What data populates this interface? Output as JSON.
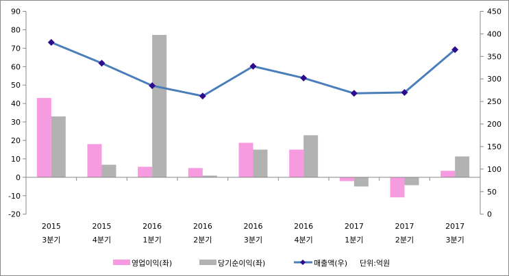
{
  "chart_data": {
    "type": "bar",
    "title": "",
    "categories": [
      [
        "2015",
        "3분기"
      ],
      [
        "2015",
        "4분기"
      ],
      [
        "2016",
        "1분기"
      ],
      [
        "2016",
        "2분기"
      ],
      [
        "2016",
        "3분기"
      ],
      [
        "2016",
        "4분기"
      ],
      [
        "2017",
        "1분기"
      ],
      [
        "2017",
        "2분기"
      ],
      [
        "2017",
        "3분기"
      ]
    ],
    "series": [
      {
        "name": "영업이익(좌)",
        "type": "bar",
        "axis": "left",
        "color": "#f79be0",
        "values": [
          43,
          18,
          5.7,
          5,
          18.7,
          15,
          -2.1,
          -10.9,
          3.5
        ]
      },
      {
        "name": "당기순이익(좌)",
        "type": "bar",
        "axis": "left",
        "color": "#b2b2b2",
        "values": [
          33,
          6.8,
          77.2,
          0.9,
          15,
          22.8,
          -5,
          -4.3,
          11.3
        ]
      },
      {
        "name": "매출액(우)",
        "type": "line",
        "axis": "right",
        "color": "#4a7ebb",
        "marker_color": "#2e0a8c",
        "values": [
          381,
          335,
          285,
          262,
          328,
          302,
          268,
          270,
          365
        ]
      }
    ],
    "left_axis": {
      "ylim": [
        -20,
        90
      ],
      "ticks": [
        -20,
        -10,
        0,
        10,
        20,
        30,
        40,
        50,
        60,
        70,
        80,
        90
      ]
    },
    "right_axis": {
      "ylim": [
        0,
        450
      ],
      "ticks": [
        0,
        50,
        100,
        150,
        200,
        250,
        300,
        350,
        400,
        450
      ]
    },
    "unit_note": "단위:억원",
    "legend_position": "bottom",
    "grid": false
  }
}
